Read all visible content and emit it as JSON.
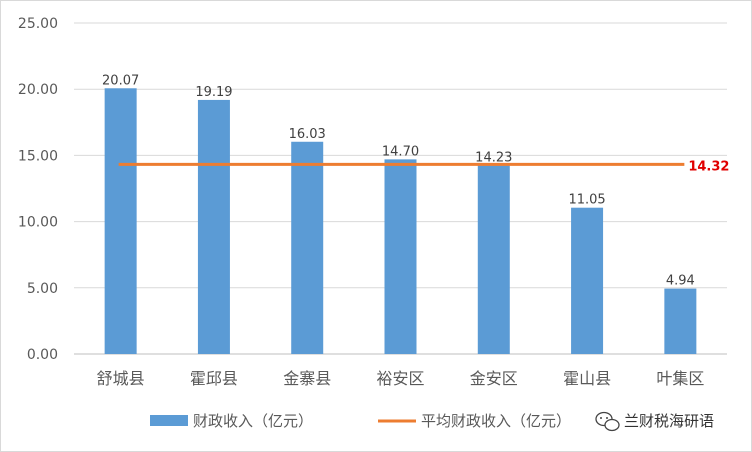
{
  "chart_data": {
    "type": "bar",
    "categories": [
      "舒城县",
      "霍邱县",
      "金寨县",
      "裕安区",
      "金安区",
      "霍山县",
      "叶集区"
    ],
    "series": [
      {
        "name": "财政收入（亿元）",
        "values": [
          20.07,
          19.19,
          16.03,
          14.7,
          14.23,
          11.05,
          4.94
        ],
        "value_labels": [
          "20.07",
          "19.19",
          "16.03",
          "14.70",
          "14.23",
          "11.05",
          "4.94"
        ],
        "color": "#5b9bd5"
      },
      {
        "name": "平均财政收入（亿元）",
        "type": "line",
        "value": 14.32,
        "value_label": "14.32",
        "color": "#ed7d31",
        "label_color": "#e00000"
      }
    ],
    "yticks": [
      "0.00",
      "5.00",
      "10.00",
      "15.00",
      "20.00",
      "25.00"
    ],
    "ylim": [
      0,
      25
    ],
    "grid": true,
    "legend_position": "bottom"
  },
  "watermark": {
    "text": "兰财税海研语",
    "icon": "wechat-icon"
  }
}
